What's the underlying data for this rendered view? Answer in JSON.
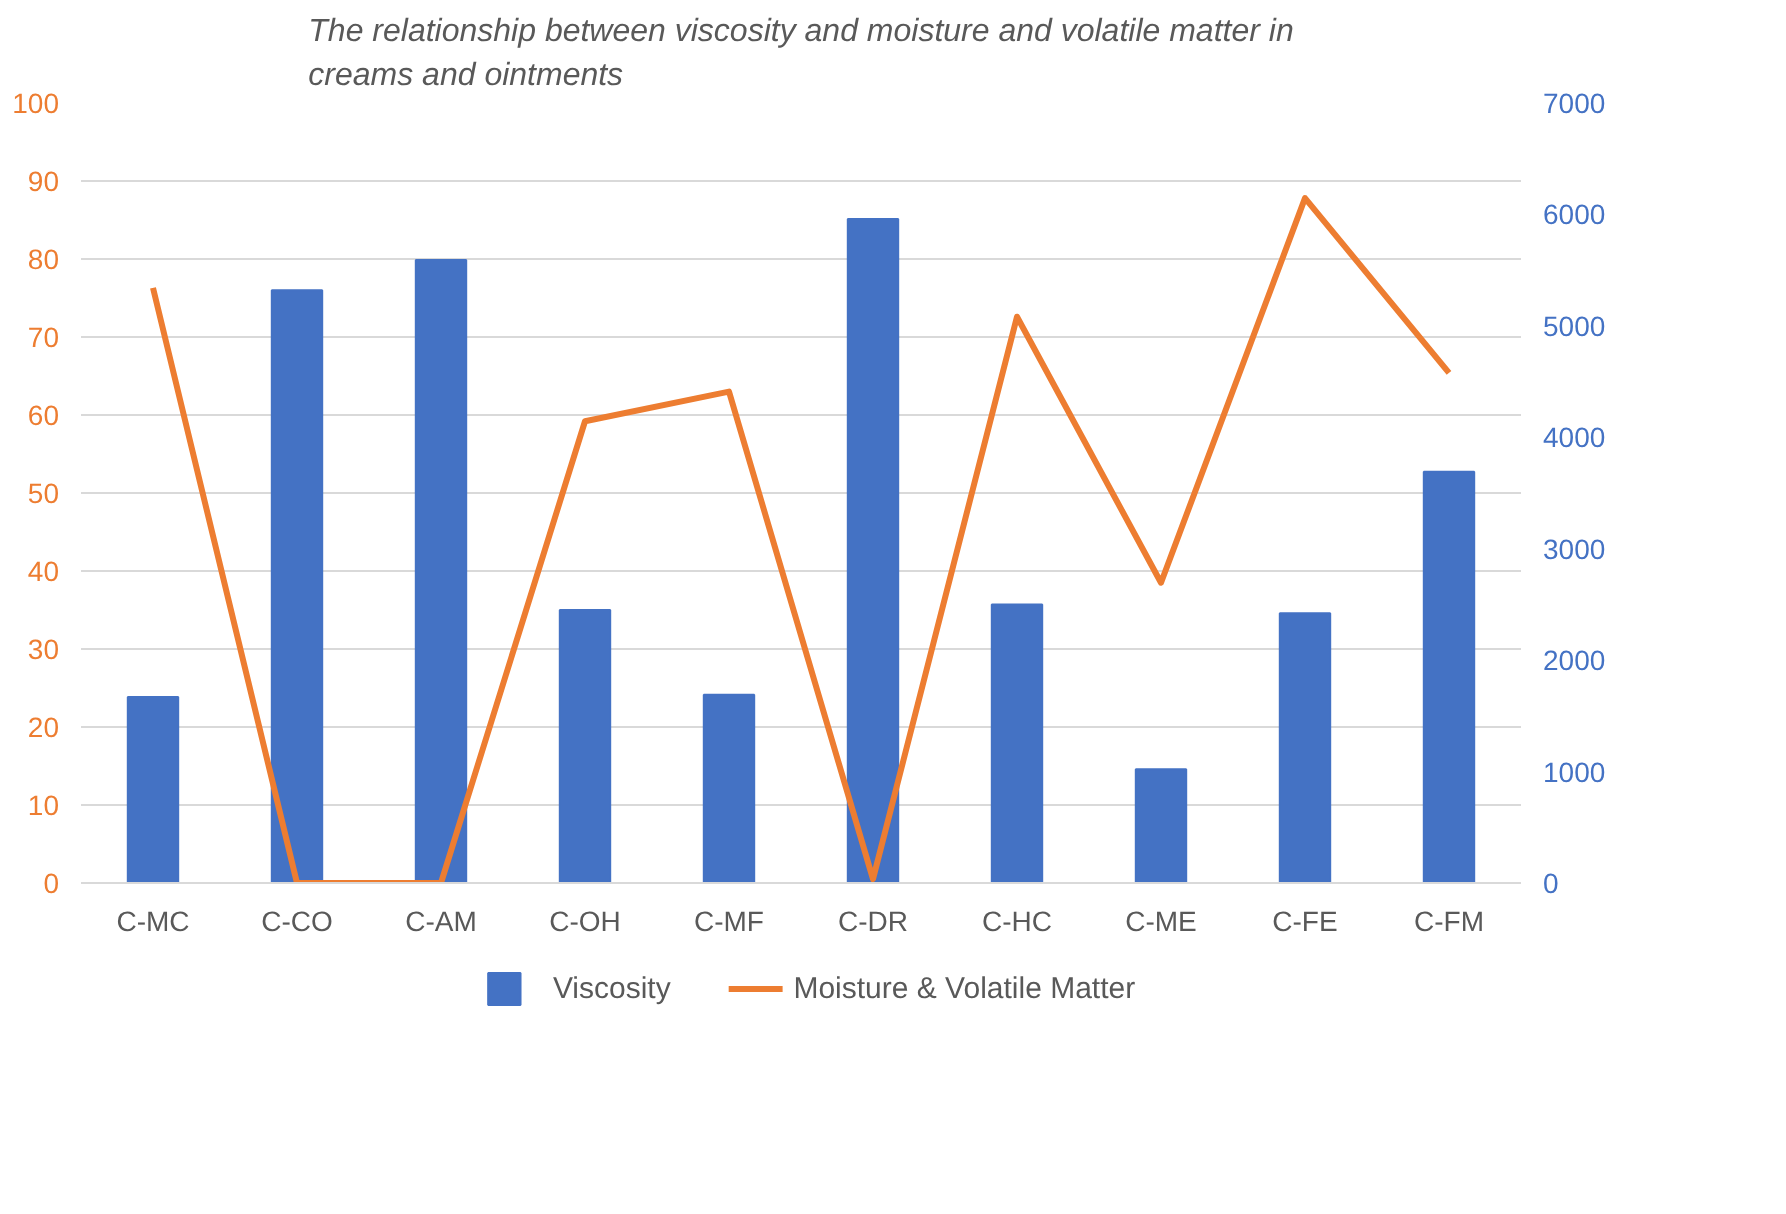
{
  "chart_data": {
    "type": "bar",
    "title": "The relationship between viscosity and moisture and volatile matter in creams and ointments",
    "categories": [
      "C-MC",
      "C-CO",
      "C-AM",
      "C-OH",
      "C-MF",
      "C-DR",
      "C-HC",
      "C-ME",
      "C-FE",
      "C-FM"
    ],
    "series": [
      {
        "name": "Viscosity",
        "axis": "y2",
        "color": "#4472c4",
        "values": [
          1670,
          5320,
          5590,
          2450,
          1690,
          5960,
          2500,
          1020,
          2420,
          3690
        ]
      },
      {
        "name": "Moisture & Volatile Matter",
        "type": "line",
        "axis": "y",
        "color": "#ed7d31",
        "values": [
          76.3,
          0,
          0,
          59.2,
          63,
          0.5,
          72.6,
          38.5,
          87.8,
          65.4
        ]
      }
    ],
    "ylim": [
      0,
      100
    ],
    "yticks": [
      0,
      10,
      20,
      30,
      40,
      50,
      60,
      70,
      80,
      90,
      100
    ],
    "y2lim": [
      0,
      7000
    ],
    "y2ticks": [
      0,
      1000,
      2000,
      3000,
      4000,
      5000,
      6000,
      7000
    ],
    "grid": "y",
    "legend": "bottom"
  }
}
